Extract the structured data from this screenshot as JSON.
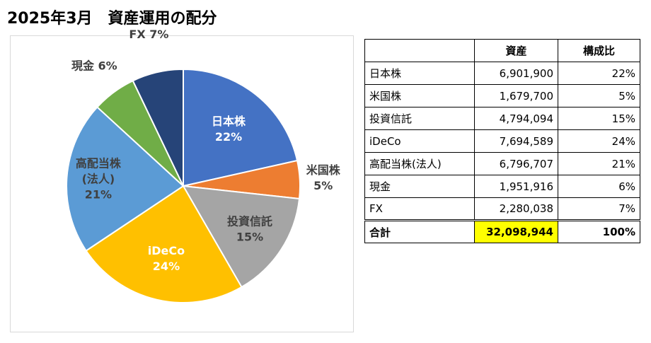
{
  "title": "2025年3月　資産運用の配分",
  "table": {
    "headers": [
      "",
      "資産",
      "構成比"
    ],
    "rows": [
      {
        "name": "日本株",
        "value": "6,901,900",
        "pct": "22%"
      },
      {
        "name": "米国株",
        "value": "1,679,700",
        "pct": "5%"
      },
      {
        "name": "投資信託",
        "value": "4,794,094",
        "pct": "15%"
      },
      {
        "name": "iDeCo",
        "value": "7,694,589",
        "pct": "24%"
      },
      {
        "name": "高配当株(法人)",
        "value": "6,796,707",
        "pct": "21%"
      },
      {
        "name": "現金",
        "value": "1,951,916",
        "pct": "6%"
      },
      {
        "name": "FX",
        "value": "2,280,038",
        "pct": "7%"
      }
    ],
    "total": {
      "name": "合計",
      "value": "32,098,944",
      "pct": "100%"
    }
  },
  "chart_data": {
    "type": "pie",
    "slices": [
      {
        "label": "日本株",
        "value": 6901900,
        "percent_label": "22%",
        "color": "#4472c4",
        "label_color": "#ffffff"
      },
      {
        "label": "米国株",
        "value": 1679700,
        "percent_label": "5%",
        "color": "#ed7d31",
        "label_color": "#404040"
      },
      {
        "label": "投資信託",
        "value": 4794094,
        "percent_label": "15%",
        "color": "#a5a5a5",
        "label_color": "#404040"
      },
      {
        "label": "iDeCo",
        "value": 7694589,
        "percent_label": "24%",
        "color": "#ffc000",
        "label_color": "#ffffff"
      },
      {
        "label": "高配当株\n(法人)",
        "value": 6796707,
        "percent_label": "21%",
        "color": "#5b9bd5",
        "label_color": "#404040"
      },
      {
        "label": "現金",
        "value": 1951916,
        "percent_label": "6%",
        "color": "#70ad47",
        "label_color": "#404040"
      },
      {
        "label": "FX",
        "value": 2280038,
        "percent_label": "7%",
        "color": "#264478",
        "label_color": "#404040"
      }
    ],
    "start": "12 o'clock",
    "direction": "clockwise",
    "legend": "none"
  }
}
